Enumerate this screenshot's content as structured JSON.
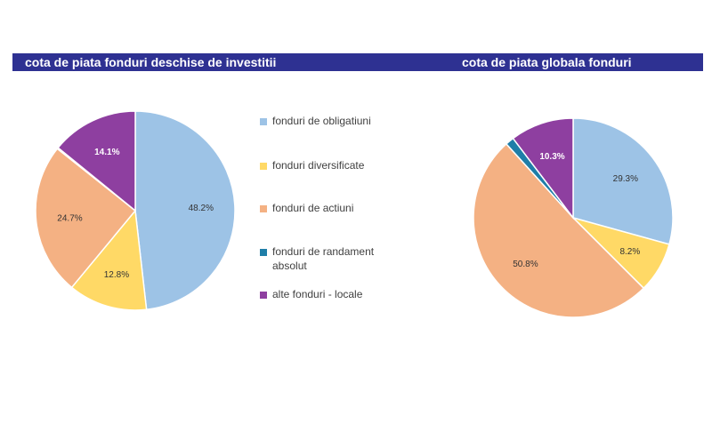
{
  "colors": {
    "title_bar": "#2e3192",
    "obligatiuni": "#9dc3e6",
    "diversificate": "#ffd966",
    "actiuni": "#f4b183",
    "randament_absolut": "#2e75b6",
    "alte": "#7030a0"
  },
  "legend": [
    {
      "label": "fonduri de obligatiuni",
      "color": "#9dc3e6"
    },
    {
      "label": "fonduri diversificate",
      "color": "#ffd966"
    },
    {
      "label": "fonduri de actiuni",
      "color": "#f4b183"
    },
    {
      "label": "fonduri de randament absolut",
      "color": "#1f7ea8"
    },
    {
      "label": "alte fonduri - locale",
      "color": "#8e3fa0"
    }
  ],
  "chart_data": [
    {
      "type": "pie",
      "title": "cota de piata fonduri deschise de investitii",
      "categories": [
        "fonduri de obligatiuni",
        "fonduri diversificate",
        "fonduri de actiuni",
        "fonduri de randament absolut",
        "alte fonduri - locale"
      ],
      "values": [
        48.2,
        12.8,
        24.7,
        0.2,
        14.1
      ],
      "labels": [
        "48.2%",
        "12.8%",
        "24.7%",
        "",
        "14.1%"
      ],
      "colors": [
        "#9dc3e6",
        "#ffd966",
        "#f4b183",
        "#1f7ea8",
        "#8e3fa0"
      ],
      "legend_position": "right"
    },
    {
      "type": "pie",
      "title": "cota de piata globala fonduri",
      "categories": [
        "fonduri de obligatiuni",
        "fonduri diversificate",
        "fonduri de actiuni",
        "fonduri de randament absolut",
        "alte fonduri - locale"
      ],
      "values": [
        29.3,
        8.2,
        50.8,
        1.4,
        10.3
      ],
      "labels": [
        "29.3%",
        "8.2%",
        "50.8%",
        "",
        "10.3%"
      ],
      "colors": [
        "#9dc3e6",
        "#ffd966",
        "#f4b183",
        "#1f7ea8",
        "#8e3fa0"
      ]
    }
  ]
}
